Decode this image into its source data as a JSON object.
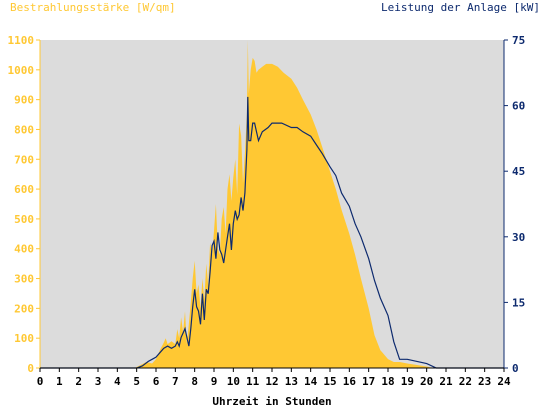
{
  "chart_data": {
    "type": "area",
    "left_axis_label": "Bestrahlungsstärke [W/qm]",
    "right_axis_label": "Leistung der Anlage [kW]",
    "xlabel": "Uhrzeit in Stunden",
    "xlim": [
      0,
      24
    ],
    "ylim_left": [
      0,
      1100
    ],
    "ylim_right": [
      0,
      75
    ],
    "x_ticks": [
      "0",
      "1",
      "2",
      "3",
      "4",
      "5",
      "6",
      "7",
      "8",
      "9",
      "10",
      "11",
      "12",
      "13",
      "14",
      "15",
      "16",
      "17",
      "18",
      "19",
      "20",
      "21",
      "22",
      "23",
      "24"
    ],
    "y_left_ticks": [
      "0",
      "100",
      "200",
      "300",
      "400",
      "500",
      "600",
      "700",
      "800",
      "900",
      "1000",
      "1100"
    ],
    "y_right_ticks": [
      "0",
      "15",
      "30",
      "45",
      "60",
      "75"
    ],
    "grid": false,
    "colors": {
      "irradiance": "#ffc833",
      "power": "#0d2a6e",
      "plot_bg": "#dcdcdc",
      "left_axis": "#ffc833",
      "right_axis": "#0d2a6e"
    },
    "series": [
      {
        "axis": "left",
        "x": [
          0,
          4.9,
          5.2,
          5.5,
          5.8,
          6.0,
          6.2,
          6.4,
          6.5,
          6.6,
          6.8,
          7.0,
          7.1,
          7.2,
          7.3,
          7.4,
          7.5,
          7.6,
          7.7,
          7.8,
          7.9,
          8.0,
          8.1,
          8.2,
          8.3,
          8.4,
          8.5,
          8.6,
          8.7,
          8.8,
          8.9,
          9.0,
          9.1,
          9.2,
          9.3,
          9.4,
          9.5,
          9.6,
          9.7,
          9.8,
          9.9,
          10.0,
          10.1,
          10.2,
          10.3,
          10.4,
          10.5,
          10.6,
          10.7,
          10.75,
          10.8,
          10.9,
          11.0,
          11.1,
          11.2,
          11.3,
          11.5,
          11.7,
          12.0,
          12.3,
          12.6,
          13.0,
          13.3,
          13.6,
          14.0,
          14.3,
          14.6,
          15.0,
          15.3,
          15.6,
          16.0,
          16.3,
          16.6,
          17.0,
          17.3,
          17.6,
          18.0,
          18.3,
          18.6,
          19.0,
          19.5,
          20.0,
          20.3,
          20.6,
          21.0,
          24
        ],
        "y": [
          0,
          0,
          10,
          20,
          15,
          30,
          60,
          85,
          100,
          80,
          90,
          80,
          130,
          100,
          170,
          120,
          190,
          80,
          150,
          220,
          300,
          360,
          250,
          280,
          200,
          300,
          230,
          350,
          280,
          420,
          380,
          460,
          550,
          400,
          380,
          500,
          540,
          450,
          600,
          650,
          560,
          640,
          700,
          580,
          820,
          780,
          620,
          720,
          850,
          1100,
          920,
          1000,
          1040,
          1030,
          990,
          1000,
          1010,
          1020,
          1020,
          1010,
          990,
          970,
          940,
          900,
          850,
          800,
          740,
          660,
          600,
          530,
          450,
          380,
          300,
          200,
          110,
          60,
          30,
          20,
          20,
          15,
          10,
          5,
          0,
          0,
          0,
          0
        ]
      },
      {
        "axis": "right",
        "x": [
          0,
          5.0,
          5.3,
          5.6,
          5.8,
          6.0,
          6.2,
          6.4,
          6.6,
          6.8,
          7.0,
          7.1,
          7.2,
          7.3,
          7.4,
          7.5,
          7.6,
          7.7,
          7.8,
          7.9,
          8.0,
          8.1,
          8.2,
          8.3,
          8.4,
          8.5,
          8.6,
          8.7,
          8.8,
          8.9,
          9.0,
          9.1,
          9.2,
          9.3,
          9.4,
          9.5,
          9.6,
          9.7,
          9.8,
          9.9,
          10.0,
          10.1,
          10.2,
          10.3,
          10.4,
          10.5,
          10.6,
          10.7,
          10.75,
          10.8,
          10.9,
          11.0,
          11.1,
          11.2,
          11.3,
          11.5,
          11.8,
          12.0,
          12.5,
          13.0,
          13.3,
          13.6,
          14.0,
          14.3,
          14.6,
          15.0,
          15.3,
          15.6,
          16.0,
          16.3,
          16.6,
          17.0,
          17.3,
          17.6,
          18.0,
          18.3,
          18.6,
          19.0,
          19.5,
          20.0,
          20.5,
          21.0,
          24
        ],
        "y": [
          0,
          0,
          0.5,
          1.5,
          2,
          2.5,
          3.5,
          4.5,
          5,
          4.5,
          5,
          6,
          5,
          7,
          8,
          9,
          7,
          5,
          9,
          14,
          18,
          14,
          13,
          10,
          17,
          11,
          18,
          17,
          22,
          28,
          29,
          25,
          31,
          27,
          26,
          24,
          27,
          30,
          33,
          27,
          33,
          36,
          34,
          35,
          39,
          36,
          40,
          50,
          62,
          52,
          52,
          56,
          56,
          54,
          52,
          54,
          55,
          56,
          56,
          55,
          55,
          54,
          53,
          51,
          49,
          46,
          44,
          40,
          37,
          33,
          30,
          25,
          20,
          16,
          12,
          6,
          2,
          2,
          1.5,
          1,
          0,
          0,
          0
        ]
      }
    ]
  }
}
